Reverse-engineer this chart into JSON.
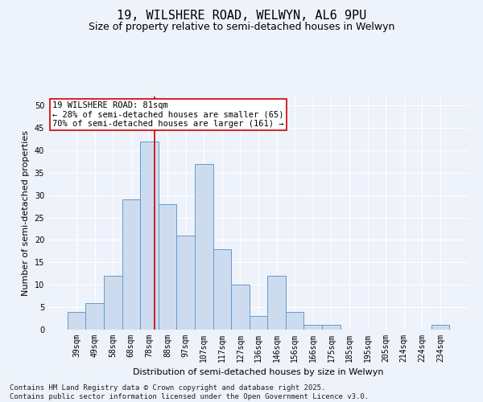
{
  "title": "19, WILSHERE ROAD, WELWYN, AL6 9PU",
  "subtitle": "Size of property relative to semi-detached houses in Welwyn",
  "xlabel": "Distribution of semi-detached houses by size in Welwyn",
  "ylabel": "Number of semi-detached properties",
  "categories": [
    "39sqm",
    "49sqm",
    "58sqm",
    "68sqm",
    "78sqm",
    "88sqm",
    "97sqm",
    "107sqm",
    "117sqm",
    "127sqm",
    "136sqm",
    "146sqm",
    "156sqm",
    "166sqm",
    "175sqm",
    "185sqm",
    "195sqm",
    "205sqm",
    "214sqm",
    "224sqm",
    "234sqm"
  ],
  "values": [
    4,
    6,
    12,
    29,
    42,
    28,
    21,
    37,
    18,
    10,
    3,
    12,
    4,
    1,
    1,
    0,
    0,
    0,
    0,
    0,
    1
  ],
  "bar_color": "#ccdcee",
  "bar_edge_color": "#6699cc",
  "red_line_index": 4.3,
  "annotation_text": "19 WILSHERE ROAD: 81sqm\n← 28% of semi-detached houses are smaller (65)\n70% of semi-detached houses are larger (161) →",
  "annotation_box_color": "#ffffff",
  "annotation_box_edge": "#cc0000",
  "ylim": [
    0,
    52
  ],
  "yticks": [
    0,
    5,
    10,
    15,
    20,
    25,
    30,
    35,
    40,
    45,
    50
  ],
  "footer": "Contains HM Land Registry data © Crown copyright and database right 2025.\nContains public sector information licensed under the Open Government Licence v3.0.",
  "bg_color": "#eef2fb",
  "grid_color": "#ffffff",
  "title_fontsize": 11,
  "subtitle_fontsize": 9,
  "axis_label_fontsize": 8,
  "tick_fontsize": 7,
  "footer_fontsize": 6.5,
  "annotation_fontsize": 7.5
}
